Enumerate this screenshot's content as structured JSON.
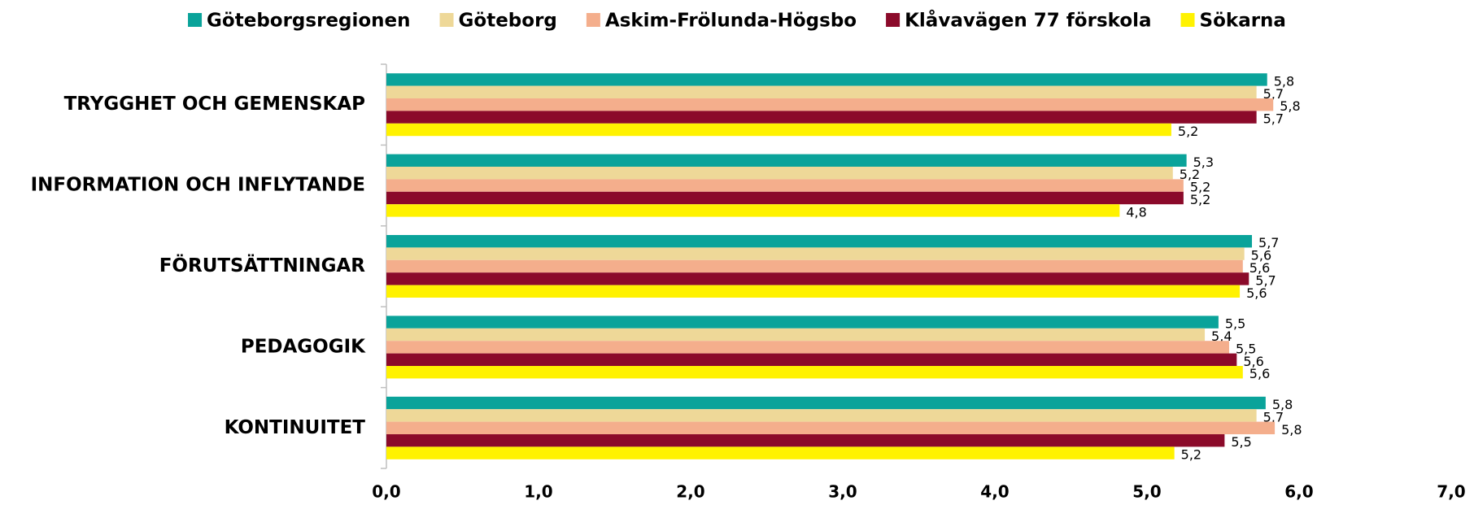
{
  "chart_data": {
    "type": "barh",
    "categories": [
      "TRYGGHET OCH GEMENSKAP",
      "INFORMATION OCH INFLYTANDE",
      "FÖRUTSÄTTNINGAR",
      "PEDAGOGIK",
      "KONTINUITET"
    ],
    "series": [
      {
        "name": "Göteborgsregionen",
        "color": "#0aa39a",
        "values": [
          5.79,
          5.26,
          5.69,
          5.47,
          5.78
        ],
        "value_labels": [
          "5,8",
          "5,3",
          "5,7",
          "5,5",
          "5,8"
        ]
      },
      {
        "name": "Göteborg",
        "color": "#eed898",
        "values": [
          5.72,
          5.17,
          5.64,
          5.38,
          5.72
        ],
        "value_labels": [
          "5,7",
          "5,2",
          "5,6",
          "5,4",
          "5,7"
        ]
      },
      {
        "name": "Askim-Frölunda-Högsbo",
        "color": "#f4ae8c",
        "values": [
          5.83,
          5.24,
          5.63,
          5.54,
          5.84
        ],
        "value_labels": [
          "5,8",
          "5,2",
          "5,6",
          "5,5",
          "5,8"
        ]
      },
      {
        "name": "Klåvavägen 77 förskola",
        "color": "#8b0a2a",
        "values": [
          5.72,
          5.24,
          5.67,
          5.59,
          5.51
        ],
        "value_labels": [
          "5,7",
          "5,2",
          "5,7",
          "5,6",
          "5,5"
        ]
      },
      {
        "name": "Sökarna",
        "color": "#fff200",
        "values": [
          5.16,
          4.82,
          5.61,
          5.63,
          5.18
        ],
        "value_labels": [
          "5,2",
          "4,8",
          "5,6",
          "5,6",
          "5,2"
        ]
      }
    ],
    "xlim": [
      0,
      7
    ],
    "xticks": [
      {
        "value": 0,
        "label": "0,0"
      },
      {
        "value": 1,
        "label": "1,0"
      },
      {
        "value": 2,
        "label": "2,0"
      },
      {
        "value": 3,
        "label": "3,0"
      },
      {
        "value": 4,
        "label": "4,0"
      },
      {
        "value": 5,
        "label": "5,0"
      },
      {
        "value": 6,
        "label": "6,0"
      },
      {
        "value": 7,
        "label": "7,0"
      }
    ],
    "legend": "top"
  }
}
